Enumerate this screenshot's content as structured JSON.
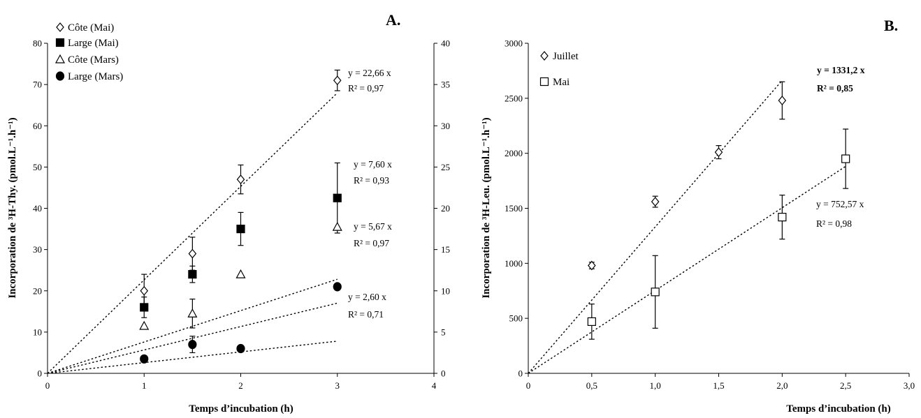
{
  "chart_data": [
    {
      "type": "scatter",
      "panel_label": "A.",
      "xlabel": "Temps d’incubation (h)",
      "ylabel_left": "Incorporation de ³H-Thy. (pmol.L⁻¹.h⁻¹)",
      "xlim": [
        0,
        4
      ],
      "ylim_left": [
        0,
        80
      ],
      "ylim_right": [
        0,
        40
      ],
      "x_ticks": [
        "0",
        "1",
        "2",
        "3",
        "4"
      ],
      "y_left_ticks": [
        "0",
        "10",
        "20",
        "30",
        "40",
        "50",
        "60",
        "70",
        "80"
      ],
      "y_right_ticks": [
        "0",
        "5",
        "10",
        "15",
        "20",
        "25",
        "30",
        "35",
        "40"
      ],
      "legend_position": "top-left",
      "series": [
        {
          "name": "Côte (Mai)",
          "marker": "diamond-open",
          "axis": "left",
          "x": [
            1,
            1.5,
            2,
            3
          ],
          "y": [
            20,
            29,
            47,
            71
          ],
          "err": [
            4,
            4,
            3.5,
            2.5
          ],
          "fit": {
            "slope": 22.66,
            "equation": "y = 22,66 x",
            "r2": "R² = 0,97"
          }
        },
        {
          "name": "Large (Mai)",
          "marker": "square-filled",
          "axis": "left",
          "x": [
            1,
            1.5,
            2,
            3
          ],
          "y": [
            16,
            24,
            35,
            42.5
          ],
          "err": [
            2.5,
            2,
            4,
            8.5
          ],
          "fit": {
            "slope": 7.6,
            "equation": "y = 7,60 x",
            "r2": "R² = 0,93"
          }
        },
        {
          "name": "Côte (Mars)",
          "marker": "triangle-open",
          "axis": "left",
          "x": [
            1,
            1.5,
            2,
            3
          ],
          "y": [
            11.5,
            14.5,
            24,
            35.5
          ],
          "err": [
            0,
            3.5,
            0,
            0
          ],
          "fit": {
            "slope": 5.67,
            "equation": "y = 5,67 x",
            "r2": "R² = 0,97"
          }
        },
        {
          "name": "Large (Mars)",
          "marker": "circle-filled",
          "axis": "left",
          "x": [
            1,
            1.5,
            2,
            3
          ],
          "y": [
            3.5,
            7,
            6,
            21
          ],
          "err": [
            0,
            2,
            0,
            0
          ],
          "fit": {
            "slope": 2.6,
            "equation": "y = 2,60 x",
            "r2": "R² = 0,71"
          }
        }
      ]
    },
    {
      "type": "scatter",
      "panel_label": "B.",
      "xlabel": "Temps d’incubation (h)",
      "ylabel": "Incorporation de ³H-Leu. (pmol.L⁻¹.h⁻¹)",
      "xlim": [
        0,
        3
      ],
      "ylim": [
        0,
        3000
      ],
      "x_ticks": [
        "0",
        "0,5",
        "1,0",
        "1,5",
        "2,0",
        "2,5",
        "3,0"
      ],
      "y_ticks": [
        "0",
        "500",
        "1000",
        "1500",
        "2000",
        "2500",
        "3000"
      ],
      "legend_position": "top-left",
      "series": [
        {
          "name": "Juillet",
          "marker": "diamond-open",
          "x": [
            0.5,
            1.0,
            1.5,
            2.0
          ],
          "y": [
            980,
            1560,
            2010,
            2480
          ],
          "err": [
            30,
            50,
            60,
            170
          ],
          "fit": {
            "slope": 1331.2,
            "equation": "y = 1331,2 x",
            "r2": "R² = 0,85"
          }
        },
        {
          "name": "Mai",
          "marker": "square-open",
          "x": [
            0.5,
            1.0,
            2.0,
            2.5
          ],
          "y": [
            470,
            740,
            1420,
            1950
          ],
          "err": [
            160,
            330,
            200,
            270
          ],
          "fit": {
            "slope": 752.57,
            "equation": "y = 752,57 x",
            "r2": "R² = 0,98"
          }
        }
      ]
    }
  ]
}
